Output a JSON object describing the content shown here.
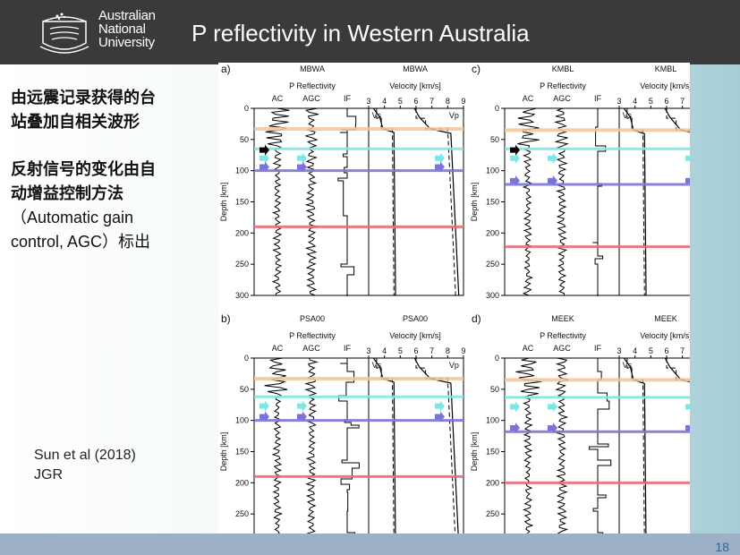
{
  "header": {
    "logo_lines": [
      "Australian",
      "National",
      "University"
    ],
    "title": "P reflectivity in Western Australia"
  },
  "left_text": {
    "line1": "由远震记录获得的台",
    "line2": "站叠加自相关波形",
    "line3": "反射信号的变化由自",
    "line4": "动增益控制方法",
    "line5": "（Automatic gain",
    "line6": "control, AGC）标出"
  },
  "citation": {
    "line1": "Sun et al (2018)",
    "line2": "JGR"
  },
  "page_number": "18",
  "figure": {
    "depth_label": "Depth [km]",
    "refl_label": "P Reflectivity",
    "vel_label": "Velocity [km/s]",
    "trace_labels": [
      "AC",
      "AGC",
      "IF"
    ],
    "depth_ticks": [
      "0",
      "50",
      "100",
      "150",
      "200",
      "250",
      "300"
    ],
    "vel_ticks": [
      "3",
      "4",
      "5",
      "6",
      "7",
      "8",
      "9"
    ],
    "vs_label": "Vs",
    "vp_label": "Vp",
    "panels": [
      {
        "letter": "a)",
        "station": "MBWA",
        "moho": 33,
        "lines": [
          65,
          100,
          190
        ]
      },
      {
        "letter": "c)",
        "station": "KMBL",
        "moho": 35,
        "lines": [
          65,
          122,
          222
        ]
      },
      {
        "letter": "b)",
        "station": "PSA00",
        "moho": 33,
        "lines": [
          62,
          100,
          190
        ]
      },
      {
        "letter": "d)",
        "station": "MEEK",
        "moho": 35,
        "lines": [
          63,
          118,
          200
        ]
      }
    ],
    "line_colors": {
      "moho": "#f2c49a",
      "cyan": "#7fe6e6",
      "purple": "#7b74d6",
      "red": "#ea6b75"
    }
  }
}
